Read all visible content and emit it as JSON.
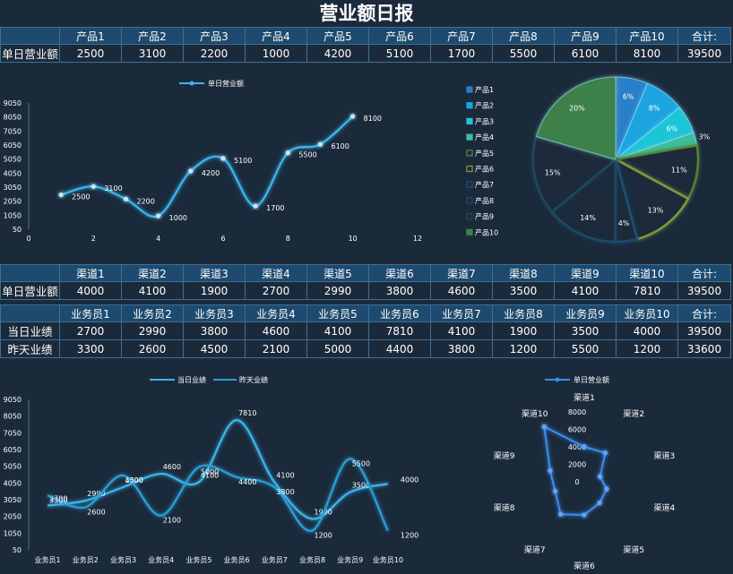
{
  "title": "营业额日报",
  "product_table": {
    "headers": [
      "",
      "产品1",
      "产品2",
      "产品3",
      "产品4",
      "产品5",
      "产品6",
      "产品7",
      "产品8",
      "产品9",
      "产品10",
      "合计:"
    ],
    "row_label": "单日营业额",
    "values": [
      "2500",
      "3100",
      "2200",
      "1000",
      "4200",
      "5100",
      "1700",
      "5500",
      "6100",
      "8100",
      "39500"
    ]
  },
  "channel_table": {
    "headers": [
      "",
      "渠道1",
      "渠道2",
      "渠道3",
      "渠道4",
      "渠道5",
      "渠道6",
      "渠道7",
      "渠道8",
      "渠道9",
      "渠道10",
      "合计:"
    ],
    "row_label": "单日营业额",
    "values": [
      "4000",
      "4100",
      "1900",
      "2700",
      "2990",
      "3800",
      "4600",
      "3500",
      "4100",
      "7810",
      "39500"
    ]
  },
  "staff_table": {
    "headers": [
      "",
      "业务员1",
      "业务员2",
      "业务员3",
      "业务员4",
      "业务员5",
      "业务员6",
      "业务员7",
      "业务员8",
      "业务员9",
      "业务员10",
      "合计:"
    ],
    "rows": [
      {
        "label": "当日业绩",
        "values": [
          "2700",
          "2990",
          "3800",
          "4600",
          "4100",
          "7810",
          "4100",
          "1900",
          "3500",
          "4000",
          "39500"
        ]
      },
      {
        "label": "昨天业绩",
        "values": [
          "3300",
          "2600",
          "4500",
          "2100",
          "5000",
          "4400",
          "3800",
          "1200",
          "5500",
          "1200",
          "33600"
        ]
      }
    ]
  },
  "colors": {
    "background": "#1b2a3b",
    "line": "#3ab6ee",
    "grid_border": "#3f6f96",
    "header_fill": "#1d4a6e"
  },
  "chart_data": [
    {
      "type": "line",
      "legend": "单日营业额",
      "series": [
        {
          "name": "单日营业额",
          "x": [
            1,
            2,
            3,
            4,
            5,
            6,
            7,
            8,
            9,
            10
          ],
          "values": [
            2500,
            3100,
            2200,
            1000,
            4200,
            5100,
            1700,
            5500,
            6100,
            8100
          ]
        }
      ],
      "x_ticks": [
        0,
        2,
        4,
        6,
        8,
        10,
        12
      ],
      "y_ticks": [
        50,
        1050,
        2050,
        3050,
        4050,
        5050,
        6050,
        7050,
        8050,
        9050
      ],
      "xlim": [
        0,
        12
      ],
      "ylim": [
        50,
        9050
      ],
      "smooth": true
    },
    {
      "type": "pie",
      "legend": [
        "产品1",
        "产品2",
        "产品3",
        "产品4",
        "产品5",
        "产品6",
        "产品7",
        "产品8",
        "产品9",
        "产品10"
      ],
      "values": [
        2500,
        3100,
        2200,
        1000,
        4200,
        5100,
        1700,
        5500,
        6100,
        8100
      ],
      "labels": [
        "6%",
        "8%",
        "6%",
        "3%",
        "11%",
        "13%",
        "4%",
        "14%",
        "15%",
        "20%"
      ],
      "colors": [
        "#2a80c8",
        "#1ba4e0",
        "#1fc4d8",
        "#3bbf9c",
        "#5a8a3a",
        "#7fa23e",
        "#1f4f78",
        "#1f4b6a",
        "#1d4a5a",
        "#3d8048"
      ],
      "outline_only": [
        false,
        false,
        false,
        false,
        true,
        true,
        true,
        true,
        true,
        false
      ]
    },
    {
      "type": "line",
      "legend": [
        "当日业绩",
        "昨天业绩"
      ],
      "categories": [
        "业务员1",
        "业务员2",
        "业务员3",
        "业务员4",
        "业务员5",
        "业务员6",
        "业务员7",
        "业务员8",
        "业务员9",
        "业务员10"
      ],
      "series": [
        {
          "name": "当日业绩",
          "values": [
            2700,
            2990,
            3800,
            4600,
            4100,
            7810,
            4100,
            1900,
            3500,
            4000
          ]
        },
        {
          "name": "昨天业绩",
          "values": [
            3300,
            2600,
            4500,
            2100,
            5000,
            4400,
            3800,
            1200,
            5500,
            1200
          ]
        }
      ],
      "y_ticks": [
        50,
        1050,
        2050,
        3050,
        4050,
        5050,
        6050,
        7050,
        8050,
        9050
      ],
      "ylim": [
        50,
        9050
      ],
      "smooth": true
    },
    {
      "type": "radar",
      "legend": "单日营业额",
      "categories": [
        "渠道1",
        "渠道2",
        "渠道3",
        "渠道4",
        "渠道5",
        "渠道6",
        "渠道7",
        "渠道8",
        "渠道9",
        "渠道10"
      ],
      "values": [
        4000,
        4100,
        1900,
        2700,
        2990,
        3800,
        4600,
        3500,
        4100,
        7810
      ],
      "r_ticks": [
        0,
        2000,
        4000,
        6000,
        8000
      ],
      "rmax": 8000
    }
  ]
}
